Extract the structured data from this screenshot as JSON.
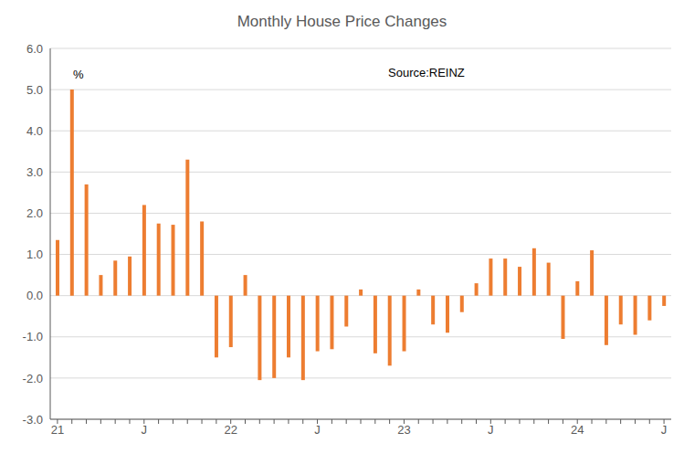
{
  "chart_data": {
    "type": "bar",
    "title": "Monthly House Price Changes",
    "annotations": [
      "%",
      "Source:REINZ"
    ],
    "categories": [
      "21",
      null,
      null,
      null,
      null,
      null,
      "J",
      null,
      null,
      null,
      null,
      null,
      "22",
      null,
      null,
      null,
      null,
      null,
      "J",
      null,
      null,
      null,
      null,
      null,
      "23",
      null,
      null,
      null,
      null,
      null,
      "J",
      null,
      null,
      null,
      null,
      null,
      "24",
      null,
      null,
      null,
      null,
      null,
      "J"
    ],
    "values": [
      1.35,
      5.0,
      2.7,
      0.5,
      0.85,
      0.95,
      2.2,
      1.75,
      1.72,
      3.3,
      1.8,
      -1.5,
      -1.25,
      0.5,
      -2.05,
      -2.0,
      -1.5,
      -2.05,
      -1.35,
      -1.3,
      -0.75,
      0.15,
      -1.4,
      -1.7,
      -1.35,
      0.15,
      -0.7,
      -0.9,
      -0.4,
      0.3,
      0.9,
      0.9,
      0.7,
      1.15,
      0.8,
      -1.05,
      0.35,
      1.1,
      -1.2,
      -0.7,
      -0.95,
      -0.6,
      -0.25
    ],
    "color": "#ed7d31",
    "ylim": [
      -3,
      6
    ],
    "yticks": [
      {
        "value": -3,
        "label": "-3.0"
      },
      {
        "value": -2,
        "label": "-2.0"
      },
      {
        "value": -1,
        "label": "-1.0"
      },
      {
        "value": 0,
        "label": "0.0"
      },
      {
        "value": 1,
        "label": "1.0"
      },
      {
        "value": 2,
        "label": "2.0"
      },
      {
        "value": 3,
        "label": "3.0"
      },
      {
        "value": 4,
        "label": "4.0"
      },
      {
        "value": 5,
        "label": "5.0"
      },
      {
        "value": 6,
        "label": "6.0"
      }
    ],
    "grid": true
  }
}
